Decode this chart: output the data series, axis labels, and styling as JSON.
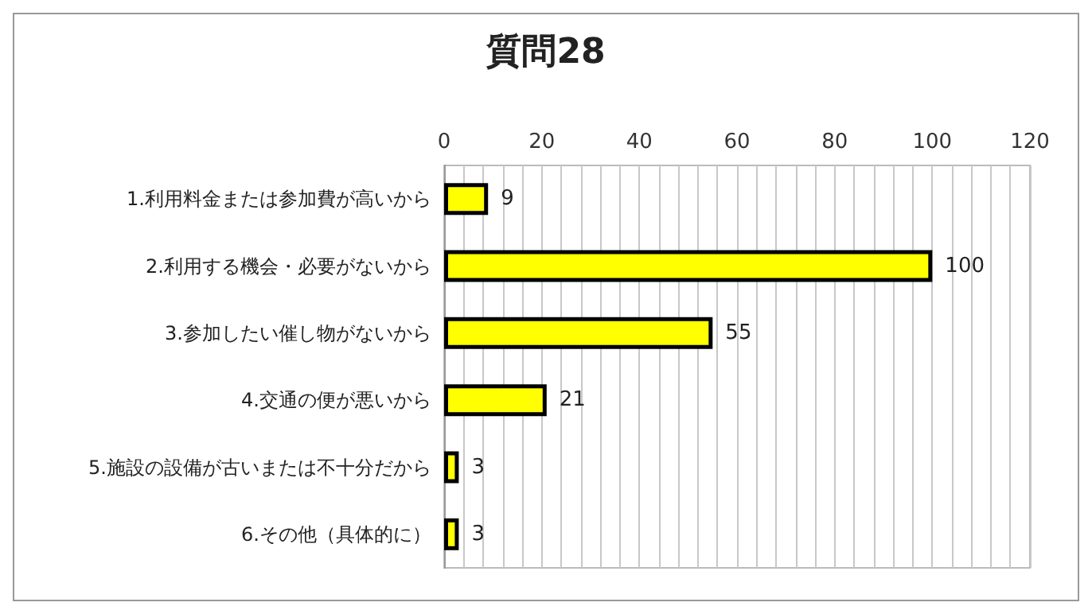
{
  "chart_data": {
    "type": "bar",
    "orientation": "horizontal",
    "title": "質問28",
    "categories": [
      "1.利用料金または参加費が高いから",
      "2.利用する機会・必要がないから",
      "3.参加したい催し物がないから",
      "4.交通の便が悪いから",
      "5.施設の設備が古いまたは不十分だから",
      "6.その他（具体的に）"
    ],
    "values": [
      9,
      100,
      55,
      21,
      3,
      3
    ],
    "color": "#ffff00",
    "data_labels": true,
    "xlim": [
      0,
      120
    ],
    "xticks": [
      0,
      {
        "value": 4,
        "label": null
      },
      {
        "value": 8,
        "label": null
      },
      {
        "value": 12,
        "label": null
      },
      {
        "value": 16,
        "label": null
      },
      20,
      {
        "value": 24,
        "label": null
      },
      {
        "value": 28,
        "label": null
      },
      {
        "value": 32,
        "label": null
      },
      {
        "value": 36,
        "label": null
      },
      40,
      {
        "value": 44,
        "label": null
      },
      {
        "value": 48,
        "label": null
      },
      {
        "value": 52,
        "label": null
      },
      {
        "value": 56,
        "label": null
      },
      60,
      {
        "value": 64,
        "label": null
      },
      {
        "value": 68,
        "label": null
      },
      {
        "value": 72,
        "label": null
      },
      {
        "value": 76,
        "label": null
      },
      80,
      {
        "value": 84,
        "label": null
      },
      {
        "value": 88,
        "label": null
      },
      {
        "value": 92,
        "label": null
      },
      {
        "value": 96,
        "label": null
      },
      100,
      {
        "value": 104,
        "label": null
      },
      {
        "value": 108,
        "label": null
      },
      {
        "value": 112,
        "label": null
      },
      {
        "value": 116,
        "label": null
      },
      120
    ],
    "grid": "x"
  }
}
